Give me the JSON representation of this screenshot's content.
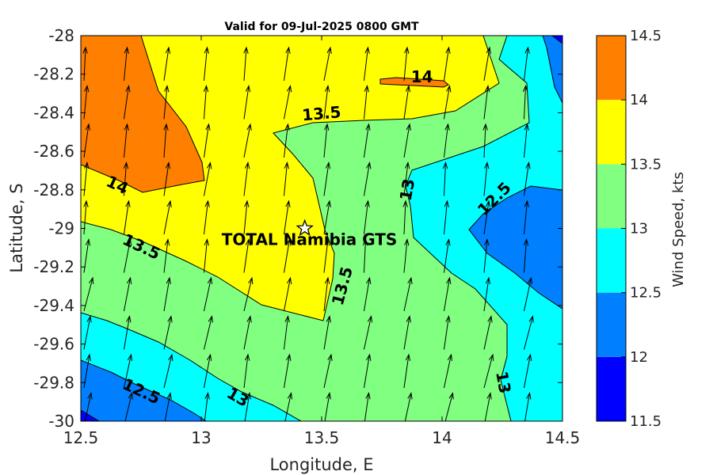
{
  "chart_data": {
    "type": "contour",
    "title": "Valid for 09-Jul-2025 0800 GMT",
    "xlabel": "Longitude, E",
    "ylabel": "Latitude, S",
    "xlim": [
      12.5,
      14.5
    ],
    "ylim": [
      -30,
      -28
    ],
    "xticks": [
      "12.5",
      "13",
      "13.5",
      "14",
      "14.5"
    ],
    "yticks": [
      "-28",
      "-28.2",
      "-28.4",
      "-28.6",
      "-28.8",
      "-29",
      "-29.2",
      "-29.4",
      "-29.6",
      "-29.8",
      "-30"
    ],
    "colorbar": {
      "label": "Wind Speed, kts",
      "levels": [
        11.5,
        12,
        12.5,
        13,
        13.5,
        14,
        14.5
      ],
      "tick_labels": [
        "11.5",
        "12",
        "12.5",
        "13",
        "13.5",
        "14",
        "14.5"
      ],
      "colors": [
        "#0000ff",
        "#0080ff",
        "#00ffff",
        "#80ff80",
        "#ffff00",
        "#ff8000"
      ]
    },
    "contour_labels": [
      {
        "text": "14",
        "x": 14.41,
        "y": -28.22,
        "angle": 0
      },
      {
        "text": "13.5",
        "x": 13.5,
        "y": -28.41,
        "angle": -5
      },
      {
        "text": "14",
        "x": 12.65,
        "y": -28.78,
        "angle": 25
      },
      {
        "text": "13",
        "x": 13.86,
        "y": -28.8,
        "angle": -80
      },
      {
        "text": "12.5",
        "x": 14.22,
        "y": -28.85,
        "angle": -45
      },
      {
        "text": "13.5",
        "x": 12.75,
        "y": -29.1,
        "angle": 25
      },
      {
        "text": "13.5",
        "x": 13.59,
        "y": -29.3,
        "angle": -75
      },
      {
        "text": "12.5",
        "x": 12.75,
        "y": -29.85,
        "angle": 25
      },
      {
        "text": "13",
        "x": 13.15,
        "y": -29.88,
        "angle": 30
      },
      {
        "text": "13",
        "x": 14.25,
        "y": -29.8,
        "angle": 80
      }
    ],
    "station": {
      "name": "TOTAL Namibia GTS",
      "lon": 13.43,
      "lat": -29.0
    },
    "wind_vectors": "northward-pointing arrows on a regular lat/lon grid"
  }
}
